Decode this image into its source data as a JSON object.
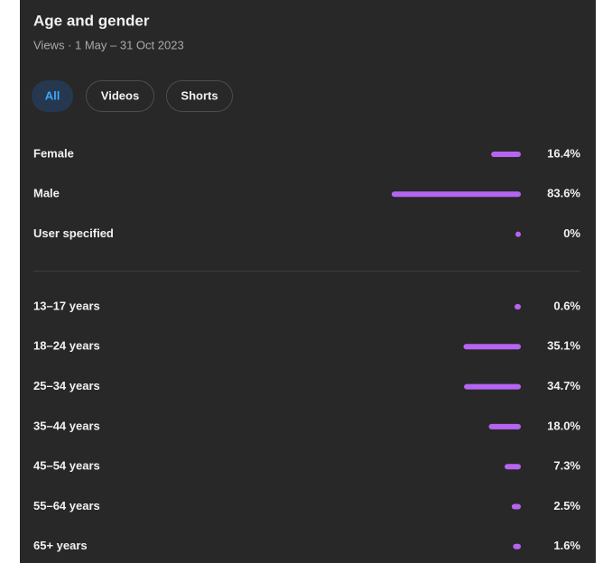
{
  "header": {
    "title": "Age and gender",
    "subtitle": "Views · 1 May – 31 Oct 2023",
    "tabs": [
      "All",
      "Videos",
      "Shorts"
    ]
  },
  "chart_data": [
    {
      "type": "bar",
      "categories": [
        "Female",
        "Male",
        "User specified"
      ],
      "values": [
        16.4,
        83.6,
        0
      ],
      "value_labels": [
        "16.4%",
        "83.6%",
        "0%"
      ],
      "color": "#b565f2"
    },
    {
      "type": "bar",
      "categories": [
        "13–17 years",
        "18–24 years",
        "25–34 years",
        "35–44 years",
        "45–54 years",
        "55–64 years",
        "65+ years"
      ],
      "values": [
        0.6,
        35.1,
        34.7,
        18.0,
        7.3,
        2.5,
        1.6
      ],
      "value_labels": [
        "0.6%",
        "35.1%",
        "34.7%",
        "18.0%",
        "7.3%",
        "2.5%",
        "1.6%"
      ],
      "color": "#b565f2"
    }
  ]
}
